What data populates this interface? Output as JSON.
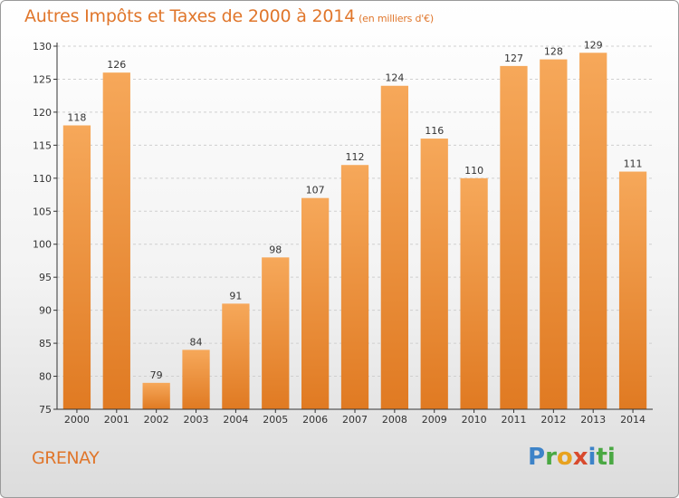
{
  "header": {
    "title": "Autres Impôts et Taxes de 2000 à 2014",
    "subtitle": "(en milliers d'€)"
  },
  "footer": {
    "commune": "GRENAY",
    "logo_letters": [
      "P",
      "r",
      "o",
      "x",
      "i",
      "ti"
    ]
  },
  "colors": {
    "bar_top": "#f6a85a",
    "bar_bottom": "#e07a22",
    "title": "#e0762b",
    "grid": "#cfcfcf",
    "axis": "#333333"
  },
  "chart_data": {
    "type": "bar",
    "title": "Autres Impôts et Taxes de 2000 à 2014",
    "subtitle": "(en milliers d'€)",
    "xlabel": "",
    "ylabel": "",
    "categories": [
      "2000",
      "2001",
      "2002",
      "2003",
      "2004",
      "2005",
      "2006",
      "2007",
      "2008",
      "2009",
      "2010",
      "2011",
      "2012",
      "2013",
      "2014"
    ],
    "values": [
      118,
      126,
      79,
      84,
      91,
      98,
      107,
      112,
      124,
      116,
      110,
      127,
      128,
      129,
      111
    ],
    "ylim": [
      75,
      130
    ],
    "yticks": [
      75,
      80,
      85,
      90,
      95,
      100,
      105,
      110,
      115,
      120,
      125,
      130
    ],
    "grid": "horizontal dashed",
    "data_labels": true
  }
}
